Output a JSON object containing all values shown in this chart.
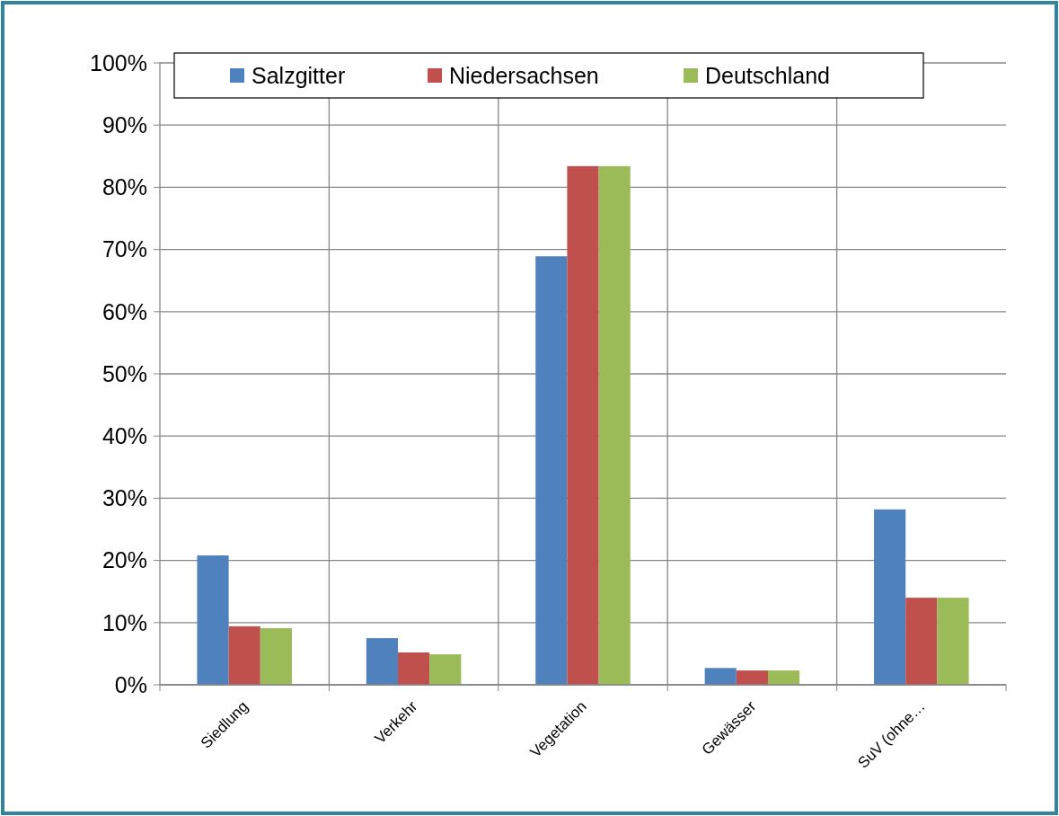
{
  "chart_data": {
    "type": "bar",
    "categories": [
      "Siedlung",
      "Verkehr",
      "Vegetation",
      "Gewässer",
      "SuV (ohne…"
    ],
    "series": [
      {
        "name": "Salzgitter",
        "color": "#4f81bd",
        "values": [
          20.8,
          7.5,
          68.9,
          2.7,
          28.2
        ]
      },
      {
        "name": "Niedersachsen",
        "color": "#c0504d",
        "values": [
          9.4,
          5.2,
          83.4,
          2.3,
          14.0
        ]
      },
      {
        "name": "Deutschland",
        "color": "#9bbb59",
        "values": [
          9.1,
          4.9,
          83.4,
          2.3,
          14.0
        ]
      }
    ],
    "ylim": [
      0,
      100
    ],
    "yticks": [
      {
        "value": 0,
        "label": "0%"
      },
      {
        "value": 10,
        "label": "10%"
      },
      {
        "value": 20,
        "label": "20%"
      },
      {
        "value": 30,
        "label": "30%"
      },
      {
        "value": 40,
        "label": "40%"
      },
      {
        "value": 50,
        "label": "50%"
      },
      {
        "value": 60,
        "label": "60%"
      },
      {
        "value": 70,
        "label": "70%"
      },
      {
        "value": 80,
        "label": "80%"
      },
      {
        "value": 90,
        "label": "90%"
      },
      {
        "value": 100,
        "label": "100%"
      }
    ],
    "grid": true,
    "legend": "top"
  }
}
